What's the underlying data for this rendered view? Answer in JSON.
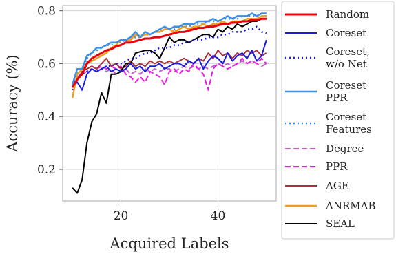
{
  "chart_data": {
    "type": "line",
    "xlabel": "Acquired Labels",
    "ylabel": "Accuracy (%)",
    "xlim": [
      8,
      52
    ],
    "ylim": [
      0.08,
      0.82
    ],
    "xticks": [
      20,
      40
    ],
    "yticks": [
      0.2,
      0.4,
      0.6,
      0.8
    ],
    "grid": true,
    "legend_position": "right, outside plot",
    "x": [
      10,
      11,
      12,
      13,
      14,
      15,
      16,
      17,
      18,
      19,
      20,
      21,
      22,
      23,
      24,
      25,
      26,
      27,
      28,
      29,
      30,
      31,
      32,
      33,
      34,
      35,
      36,
      37,
      38,
      39,
      40,
      41,
      42,
      43,
      44,
      45,
      46,
      47,
      48,
      49,
      50
    ],
    "series": [
      {
        "name": "Random",
        "color": "#e8000b",
        "dash": "solid",
        "width": 3,
        "values": [
          0.51,
          0.54,
          0.56,
          0.6,
          0.62,
          0.63,
          0.64,
          0.65,
          0.655,
          0.665,
          0.67,
          0.68,
          0.68,
          0.685,
          0.69,
          0.695,
          0.695,
          0.7,
          0.7,
          0.705,
          0.71,
          0.715,
          0.72,
          0.72,
          0.725,
          0.73,
          0.735,
          0.735,
          0.74,
          0.74,
          0.745,
          0.75,
          0.75,
          0.755,
          0.755,
          0.76,
          0.76,
          0.765,
          0.765,
          0.77,
          0.77
        ]
      },
      {
        "name": "Coreset",
        "color": "#1a1ae0",
        "dash": "solid",
        "width": 2,
        "values": [
          0.51,
          0.53,
          0.5,
          0.56,
          0.58,
          0.57,
          0.58,
          0.59,
          0.57,
          0.58,
          0.57,
          0.58,
          0.6,
          0.58,
          0.59,
          0.57,
          0.59,
          0.59,
          0.6,
          0.58,
          0.59,
          0.6,
          0.6,
          0.59,
          0.61,
          0.6,
          0.62,
          0.58,
          0.61,
          0.63,
          0.62,
          0.6,
          0.64,
          0.61,
          0.63,
          0.64,
          0.62,
          0.65,
          0.61,
          0.63,
          0.69
        ]
      },
      {
        "name": "Coreset,\nw/o Net",
        "color": "#1a1ae0",
        "dash": "2,4",
        "width": 2.5,
        "values": [
          0.5,
          0.55,
          0.56,
          0.57,
          0.58,
          0.57,
          0.58,
          0.59,
          0.59,
          0.6,
          0.6,
          0.61,
          0.62,
          0.62,
          0.63,
          0.64,
          0.64,
          0.65,
          0.66,
          0.66,
          0.66,
          0.67,
          0.67,
          0.68,
          0.68,
          0.69,
          0.69,
          0.69,
          0.7,
          0.7,
          0.7,
          0.71,
          0.71,
          0.72,
          0.72,
          0.72,
          0.73,
          0.73,
          0.74,
          0.72,
          0.715
        ]
      },
      {
        "name": "Coreset\nPPR",
        "color": "#3d8ee6",
        "dash": "solid",
        "width": 2.5,
        "values": [
          0.52,
          0.58,
          0.58,
          0.63,
          0.64,
          0.66,
          0.66,
          0.67,
          0.68,
          0.68,
          0.69,
          0.69,
          0.7,
          0.72,
          0.7,
          0.72,
          0.71,
          0.72,
          0.73,
          0.74,
          0.73,
          0.74,
          0.74,
          0.75,
          0.75,
          0.75,
          0.76,
          0.76,
          0.76,
          0.77,
          0.76,
          0.77,
          0.78,
          0.77,
          0.78,
          0.78,
          0.78,
          0.79,
          0.78,
          0.79,
          0.79
        ]
      },
      {
        "name": "Coreset\nFeatures",
        "color": "#3d8ee6",
        "dash": "2,4",
        "width": 2.5,
        "values": [
          0.52,
          0.57,
          0.57,
          0.62,
          0.64,
          0.65,
          0.66,
          0.67,
          0.67,
          0.68,
          0.68,
          0.69,
          0.69,
          0.7,
          0.7,
          0.71,
          0.71,
          0.72,
          0.72,
          0.73,
          0.73,
          0.73,
          0.74,
          0.74,
          0.74,
          0.75,
          0.75,
          0.75,
          0.76,
          0.76,
          0.76,
          0.77,
          0.77,
          0.77,
          0.77,
          0.78,
          0.78,
          0.78,
          0.78,
          0.78,
          0.78
        ]
      },
      {
        "name": "Degree",
        "color": "#c060c8",
        "dash": "8,4",
        "width": 2,
        "values": [
          0.52,
          0.55,
          0.56,
          0.57,
          0.58,
          0.57,
          0.58,
          0.57,
          0.58,
          0.56,
          0.57,
          0.58,
          0.56,
          0.57,
          0.56,
          0.58,
          0.57,
          0.58,
          0.57,
          0.58,
          0.58,
          0.57,
          0.58,
          0.59,
          0.58,
          0.59,
          0.58,
          0.59,
          0.58,
          0.59,
          0.6,
          0.59,
          0.6,
          0.59,
          0.6,
          0.61,
          0.6,
          0.61,
          0.6,
          0.59,
          0.6
        ]
      },
      {
        "name": "PPR",
        "color": "#f01ae8",
        "dash": "8,4",
        "width": 2,
        "values": [
          0.52,
          0.56,
          0.57,
          0.58,
          0.59,
          0.58,
          0.59,
          0.58,
          0.59,
          0.58,
          0.59,
          0.56,
          0.55,
          0.53,
          0.55,
          0.53,
          0.57,
          0.56,
          0.55,
          0.52,
          0.57,
          0.58,
          0.56,
          0.58,
          0.57,
          0.6,
          0.58,
          0.56,
          0.5,
          0.58,
          0.6,
          0.59,
          0.58,
          0.59,
          0.6,
          0.62,
          0.6,
          0.61,
          0.6,
          0.62,
          0.6
        ]
      },
      {
        "name": "AGE",
        "color": "#a8323a",
        "dash": "solid",
        "width": 2,
        "values": [
          0.51,
          0.54,
          0.57,
          0.58,
          0.59,
          0.58,
          0.6,
          0.62,
          0.59,
          0.6,
          0.58,
          0.59,
          0.61,
          0.59,
          0.6,
          0.59,
          0.61,
          0.6,
          0.61,
          0.6,
          0.61,
          0.6,
          0.61,
          0.62,
          0.61,
          0.6,
          0.62,
          0.61,
          0.64,
          0.62,
          0.65,
          0.63,
          0.64,
          0.62,
          0.64,
          0.63,
          0.65,
          0.64,
          0.65,
          0.63,
          0.64
        ]
      },
      {
        "name": "ANRMAB",
        "color": "#f39c1c",
        "dash": "solid",
        "width": 2.5,
        "values": [
          0.47,
          0.56,
          0.58,
          0.6,
          0.61,
          0.62,
          0.63,
          0.64,
          0.66,
          0.67,
          0.69,
          0.69,
          0.69,
          0.71,
          0.7,
          0.71,
          0.71,
          0.72,
          0.72,
          0.73,
          0.73,
          0.72,
          0.73,
          0.74,
          0.73,
          0.74,
          0.74,
          0.75,
          0.74,
          0.75,
          0.75,
          0.76,
          0.75,
          0.76,
          0.76,
          0.76,
          0.77,
          0.77,
          0.77,
          0.78,
          0.78
        ]
      },
      {
        "name": "SEAL",
        "color": "#000000",
        "dash": "solid",
        "width": 2,
        "values": [
          0.13,
          0.11,
          0.16,
          0.3,
          0.38,
          0.41,
          0.49,
          0.45,
          0.56,
          0.56,
          0.57,
          0.6,
          0.6,
          0.64,
          0.645,
          0.65,
          0.65,
          0.64,
          0.62,
          0.66,
          0.7,
          0.68,
          0.69,
          0.69,
          0.68,
          0.69,
          0.7,
          0.71,
          0.71,
          0.7,
          0.73,
          0.72,
          0.74,
          0.73,
          0.75,
          0.74,
          0.75,
          0.76,
          0.76,
          0.77,
          0.77
        ]
      }
    ]
  }
}
